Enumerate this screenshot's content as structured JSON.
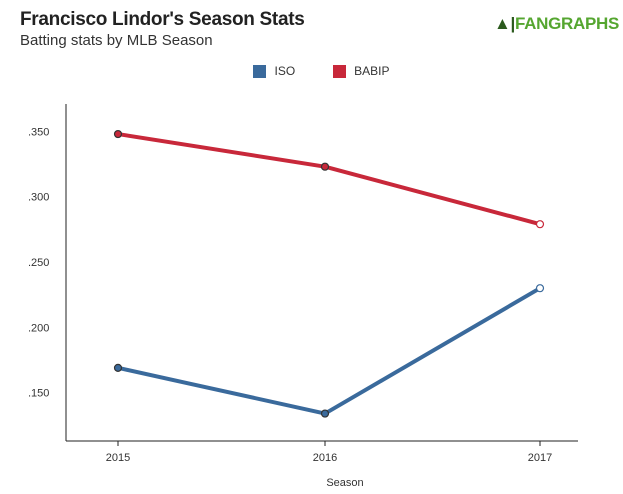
{
  "header": {
    "title": "Francisco Lindor's Season Stats",
    "subtitle": "Batting stats by MLB Season",
    "logo": "FANGRAPHS"
  },
  "chart_data": {
    "type": "line",
    "title": "Francisco Lindor's Season Stats",
    "subtitle": "Batting stats by MLB Season",
    "xlabel": "Season",
    "ylabel": "",
    "x": [
      "2015",
      "2016",
      "2017"
    ],
    "ylim": [
      0.113,
      0.371
    ],
    "yticks": [
      0.15,
      0.2,
      0.25,
      0.3,
      0.35
    ],
    "ytick_labels": [
      ".150",
      ".200",
      ".250",
      ".300",
      ".350"
    ],
    "legend_position": "top-center",
    "grid": false,
    "series": [
      {
        "name": "ISO",
        "color": "#3a6a9c",
        "values": [
          0.169,
          0.134,
          0.23
        ]
      },
      {
        "name": "BABIP",
        "color": "#c8283a",
        "values": [
          0.348,
          0.323,
          0.279
        ]
      }
    ]
  }
}
